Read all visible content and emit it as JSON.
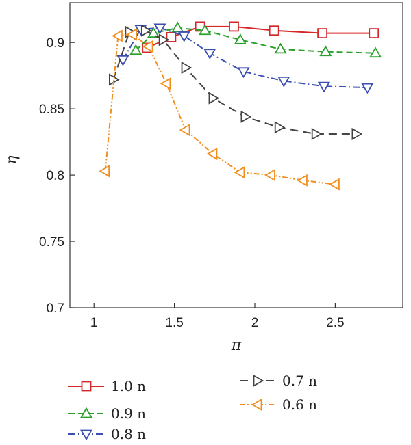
{
  "chart_data": {
    "type": "line",
    "title": "",
    "xlabel": "π",
    "ylabel": "η",
    "xlim": [
      0.85,
      2.92
    ],
    "ylim": [
      0.7,
      0.93
    ],
    "xticks": [
      "1",
      "1.5",
      "2",
      "2.5"
    ],
    "yticks": [
      "0.7",
      "0.75",
      "0.8",
      "0.85",
      "0.9"
    ],
    "grid": false,
    "legend_position": "bottom",
    "series": [
      {
        "name": "1.0 n",
        "color": "#d62728",
        "dash": "solid",
        "marker": "square",
        "points": [
          [
            1.33,
            0.896
          ],
          [
            1.48,
            0.904
          ],
          [
            1.66,
            0.912
          ],
          [
            1.87,
            0.912
          ],
          [
            2.12,
            0.909
          ],
          [
            2.42,
            0.907
          ],
          [
            2.74,
            0.907
          ]
        ]
      },
      {
        "name": "0.9 n",
        "color": "#2ca02c",
        "dash": "dashed",
        "marker": "triangle-up",
        "points": [
          [
            1.26,
            0.894
          ],
          [
            1.37,
            0.907
          ],
          [
            1.52,
            0.911
          ],
          [
            1.69,
            0.909
          ],
          [
            1.91,
            0.902
          ],
          [
            2.16,
            0.895
          ],
          [
            2.44,
            0.893
          ],
          [
            2.75,
            0.892
          ]
        ]
      },
      {
        "name": "0.8 n",
        "color": "#3a4fb0",
        "dash": "dashdot",
        "marker": "triangle-down",
        "points": [
          [
            1.18,
            0.887
          ],
          [
            1.29,
            0.91
          ],
          [
            1.41,
            0.911
          ],
          [
            1.56,
            0.905
          ],
          [
            1.72,
            0.892
          ],
          [
            1.93,
            0.878
          ],
          [
            2.18,
            0.871
          ],
          [
            2.43,
            0.867
          ],
          [
            2.7,
            0.866
          ]
        ]
      },
      {
        "name": "0.7 n",
        "color": "#444444",
        "dash": "longdash",
        "marker": "triangle-right",
        "points": [
          [
            1.12,
            0.872
          ],
          [
            1.22,
            0.908
          ],
          [
            1.32,
            0.909
          ],
          [
            1.43,
            0.902
          ],
          [
            1.57,
            0.881
          ],
          [
            1.74,
            0.858
          ],
          [
            1.94,
            0.844
          ],
          [
            2.15,
            0.836
          ],
          [
            2.38,
            0.831
          ],
          [
            2.63,
            0.831
          ]
        ]
      },
      {
        "name": "0.6 n",
        "color": "#f28e1c",
        "dash": "dashdotdot",
        "marker": "triangle-left",
        "points": [
          [
            1.07,
            0.803
          ],
          [
            1.15,
            0.905
          ],
          [
            1.24,
            0.906
          ],
          [
            1.34,
            0.897
          ],
          [
            1.45,
            0.869
          ],
          [
            1.57,
            0.834
          ],
          [
            1.74,
            0.816
          ],
          [
            1.91,
            0.802
          ],
          [
            2.1,
            0.8
          ],
          [
            2.3,
            0.796
          ],
          [
            2.5,
            0.793
          ]
        ]
      }
    ]
  }
}
